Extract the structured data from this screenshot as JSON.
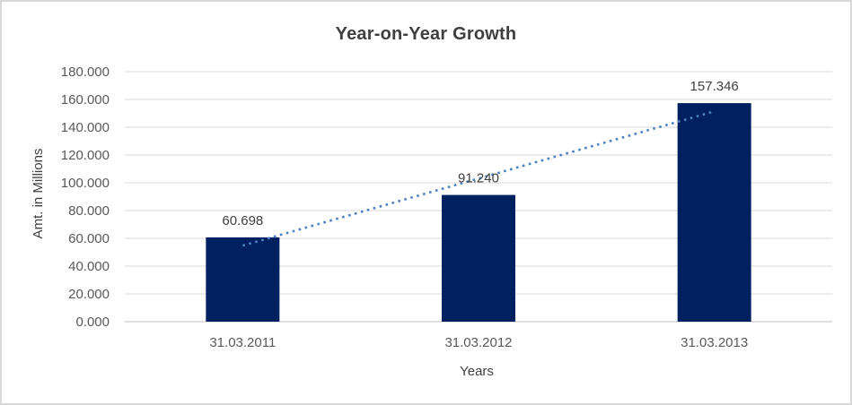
{
  "chart_data": {
    "type": "bar",
    "title": "Year-on-Year Growth",
    "xlabel": "Years",
    "ylabel": "Amt. in Millions",
    "categories": [
      "31.03.2011",
      "31.03.2012",
      "31.03.2013"
    ],
    "values": [
      60.698,
      91.24,
      157.346
    ],
    "data_labels": [
      "60.698",
      "91.240",
      "157.346"
    ],
    "ylim": [
      0,
      180
    ],
    "ytick_values": [
      0,
      20,
      40,
      60,
      80,
      100,
      120,
      140,
      160,
      180
    ],
    "ytick_labels": [
      "0.000",
      "20.000",
      "40.000",
      "60.000",
      "80.000",
      "100.000",
      "120.000",
      "140.000",
      "160.000",
      "180.000"
    ],
    "grid": true,
    "legend": "none",
    "trendline": {
      "type": "linear",
      "style": "dotted"
    },
    "colors": {
      "bar": "#002060",
      "trendline": "#4e81c0",
      "gridline": "#d9d9d9",
      "axis_line": "#bfbfbf",
      "title_text": "#3f3f3f",
      "label_text": "#404040",
      "tick_text": "#595959",
      "border": "#d8d8d8",
      "background": "#ffffff"
    }
  }
}
